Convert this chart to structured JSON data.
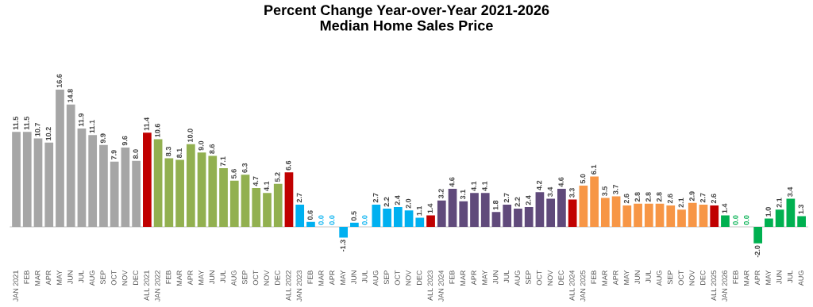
{
  "chart_data": {
    "type": "bar",
    "title": "Percent Change Year-over-Year 2021-2026\nMedian Home Sales Price",
    "categories": [
      "JAN 2021",
      "FEB",
      "MAR",
      "APR",
      "MAY",
      "JUN",
      "JUL",
      "AUG",
      "SEP",
      "OCT",
      "NOV",
      "DEC",
      "ALL 2021",
      "JAN 2022",
      "FEB",
      "MAR",
      "APR",
      "MAY",
      "JUN",
      "JUL",
      "AUG",
      "SEP",
      "OCT",
      "NOV",
      "DEC",
      "ALL 2022",
      "JAN 2023",
      "FEB",
      "MAR",
      "APR",
      "MAY",
      "JUN",
      "JUL",
      "AUG",
      "SEP",
      "OCT",
      "NOV",
      "DEC",
      "ALL 2023",
      "JAN 2024",
      "FEB",
      "MAR",
      "APR",
      "MAY",
      "JUN",
      "JUL",
      "AUG",
      "SEP",
      "OCT",
      "NOV",
      "DEC",
      "ALL 2024",
      "JAN 2025",
      "FEB",
      "MAR",
      "APR",
      "MAY",
      "JUN",
      "JUL",
      "AUG",
      "SEP",
      "OCT",
      "NOV",
      "DEC",
      "ALL 2025",
      "JAN 2026",
      "FEB",
      "MAR",
      "APR",
      "MAY",
      "JUN",
      "JUL",
      "AUG"
    ],
    "values": [
      11.5,
      11.5,
      10.7,
      10.2,
      16.6,
      14.8,
      11.9,
      11.1,
      9.9,
      7.9,
      9.6,
      8.0,
      11.4,
      10.6,
      8.3,
      8.1,
      10.0,
      9.0,
      8.6,
      7.1,
      5.6,
      6.3,
      4.7,
      4.1,
      5.2,
      6.6,
      2.7,
      0.6,
      0.0,
      0.0,
      -1.3,
      0.5,
      0.0,
      2.7,
      2.2,
      2.4,
      2.0,
      1.1,
      1.4,
      3.2,
      4.6,
      3.1,
      4.1,
      4.1,
      1.8,
      2.7,
      2.2,
      2.4,
      4.2,
      3.4,
      4.6,
      3.3,
      5.0,
      6.1,
      3.5,
      3.7,
      2.6,
      2.8,
      2.8,
      2.8,
      2.6,
      2.1,
      2.9,
      2.7,
      2.6,
      1.4,
      0.0,
      0.0,
      -2.0,
      1.0,
      2.1,
      3.4,
      1.3
    ],
    "colors": [
      "#a6a6a6",
      "#a6a6a6",
      "#a6a6a6",
      "#a6a6a6",
      "#a6a6a6",
      "#a6a6a6",
      "#a6a6a6",
      "#a6a6a6",
      "#a6a6a6",
      "#a6a6a6",
      "#a6a6a6",
      "#a6a6a6",
      "#c00000",
      "#92b050",
      "#92b050",
      "#92b050",
      "#92b050",
      "#92b050",
      "#92b050",
      "#92b050",
      "#92b050",
      "#92b050",
      "#92b050",
      "#92b050",
      "#92b050",
      "#c00000",
      "#00b0f0",
      "#00b0f0",
      "#00b0f0",
      "#00b0f0",
      "#00b0f0",
      "#00b0f0",
      "#00b0f0",
      "#00b0f0",
      "#00b0f0",
      "#00b0f0",
      "#00b0f0",
      "#00b0f0",
      "#c00000",
      "#604a7b",
      "#604a7b",
      "#604a7b",
      "#604a7b",
      "#604a7b",
      "#604a7b",
      "#604a7b",
      "#604a7b",
      "#604a7b",
      "#604a7b",
      "#604a7b",
      "#604a7b",
      "#c00000",
      "#f79646",
      "#f79646",
      "#f79646",
      "#f79646",
      "#f79646",
      "#f79646",
      "#f79646",
      "#f79646",
      "#f79646",
      "#f79646",
      "#f79646",
      "#f79646",
      "#c00000",
      "#00b050",
      "#00b050",
      "#00b050",
      "#00b050",
      "#00b050",
      "#00b050",
      "#00b050",
      "#00b050"
    ],
    "value_labels": [
      "11.5",
      "11.5",
      "10.7",
      "10.2",
      "16.6",
      "14.8",
      "11.9",
      "11.1",
      "9.9",
      "7.9",
      "9.6",
      "8.0",
      "11.4",
      "10.6",
      "8.3",
      "8.1",
      "10.0",
      "9.0",
      "8.6",
      "7.1",
      "5.6",
      "6.3",
      "4.7",
      "4.1",
      "5.2",
      "6.6",
      "2.7",
      "0.6",
      "0.0",
      "0.0",
      "-1.3",
      "0.5",
      "0.0",
      "2.7",
      "2.2",
      "2.4",
      "2.0",
      "1.1",
      "1.4",
      "3.2",
      "4.6",
      "3.1",
      "4.1",
      "4.1",
      "1.8",
      "2.7",
      "2.2",
      "2.4",
      "4.2",
      "3.4",
      "4.6",
      "3.3",
      "5.0",
      "6.1",
      "3.5",
      "3.7",
      "2.6",
      "2.8",
      "2.8",
      "2.8",
      "2.6",
      "2.1",
      "2.9",
      "2.7",
      "2.6",
      "1.4",
      "0.0",
      "0.0",
      "-2.0",
      "1.0",
      "2.1",
      "3.4",
      "1.3"
    ]
  }
}
